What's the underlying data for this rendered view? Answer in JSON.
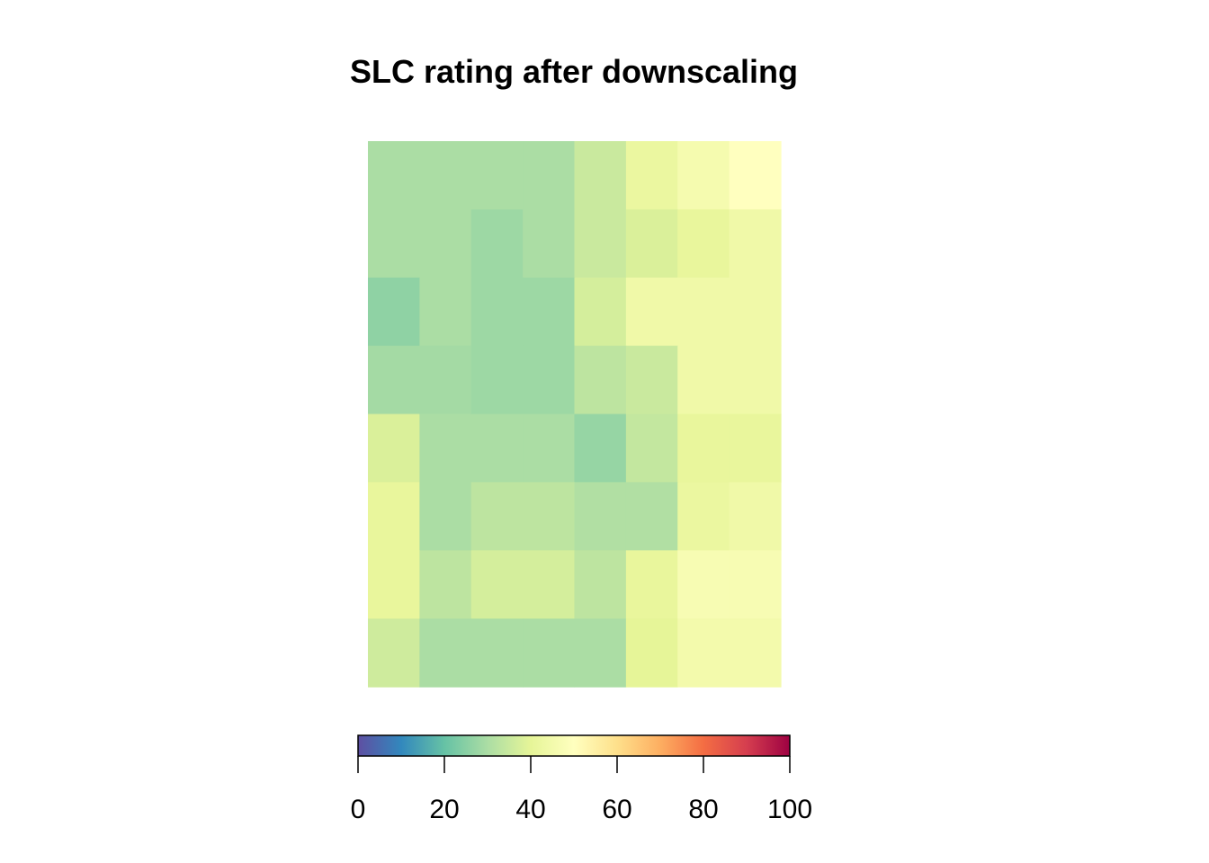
{
  "chart_data": {
    "type": "heatmap",
    "title": "SLC rating after downscaling",
    "xlabel": "",
    "ylabel": "",
    "n_rows": 8,
    "n_cols": 8,
    "values": [
      [
        30,
        30,
        30,
        30,
        35,
        42,
        46,
        50
      ],
      [
        30,
        30,
        28,
        30,
        35,
        38,
        41,
        44
      ],
      [
        26,
        30,
        28,
        28,
        37,
        44,
        44,
        44
      ],
      [
        29,
        29,
        28,
        28,
        33,
        35,
        44,
        44
      ],
      [
        38,
        30,
        30,
        30,
        27,
        34,
        41,
        41
      ],
      [
        41,
        30,
        33,
        33,
        31,
        31,
        42,
        44
      ],
      [
        41,
        33,
        37,
        37,
        33,
        41,
        47,
        47
      ],
      [
        36,
        30,
        30,
        30,
        30,
        40,
        45,
        45
      ]
    ],
    "colorbar": {
      "min": 0,
      "max": 100,
      "ticks": [
        0,
        20,
        40,
        60,
        80,
        100
      ],
      "tick_labels": [
        "0",
        "20",
        "40",
        "60",
        "80",
        "100"
      ],
      "palette": [
        "#5E4FA2",
        "#3288BD",
        "#66C2A5",
        "#ABDDA4",
        "#E6F598",
        "#FFFFBF",
        "#FEE08B",
        "#FDAE61",
        "#F46D43",
        "#D53E4F",
        "#9E0142"
      ]
    }
  }
}
